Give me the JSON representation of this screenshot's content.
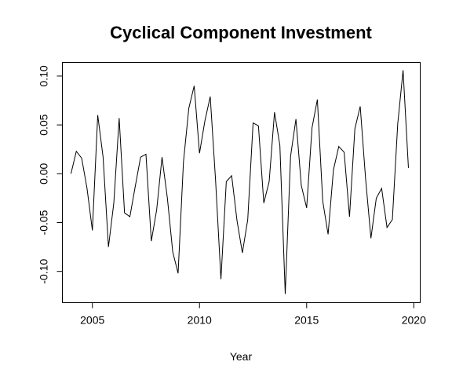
{
  "chart_data": {
    "type": "line",
    "title": "Cyclical Component Investment",
    "xlabel": "Year",
    "ylabel": "",
    "xlim": [
      2003.6,
      2020.3
    ],
    "ylim": [
      -0.132,
      0.114
    ],
    "x_ticks": [
      2005,
      2010,
      2015,
      2020
    ],
    "x_tick_labels": [
      "2005",
      "2010",
      "2015",
      "2020"
    ],
    "y_ticks": [
      -0.1,
      -0.05,
      0.0,
      0.05,
      0.1
    ],
    "y_tick_labels": [
      "-0.10",
      "-0.05",
      "0.00",
      "0.05",
      "0.10"
    ],
    "grid": false,
    "series": [
      {
        "color": "#000000",
        "x": [
          2004.0,
          2004.25,
          2004.5,
          2004.75,
          2005.0,
          2005.25,
          2005.5,
          2005.75,
          2006.0,
          2006.25,
          2006.5,
          2006.75,
          2007.0,
          2007.25,
          2007.5,
          2007.75,
          2008.0,
          2008.25,
          2008.5,
          2008.75,
          2009.0,
          2009.25,
          2009.5,
          2009.75,
          2010.0,
          2010.25,
          2010.5,
          2010.75,
          2011.0,
          2011.25,
          2011.5,
          2011.75,
          2012.0,
          2012.25,
          2012.5,
          2012.75,
          2013.0,
          2013.25,
          2013.5,
          2013.75,
          2014.0,
          2014.25,
          2014.5,
          2014.75,
          2015.0,
          2015.25,
          2015.5,
          2015.75,
          2016.0,
          2016.25,
          2016.5,
          2016.75,
          2017.0,
          2017.25,
          2017.5,
          2017.75,
          2018.0,
          2018.25,
          2018.5,
          2018.75,
          2019.0,
          2019.25,
          2019.5,
          2019.75
        ],
        "values": [
          0.0,
          0.023,
          0.016,
          -0.015,
          -0.058,
          0.06,
          0.017,
          -0.075,
          -0.03,
          0.057,
          -0.04,
          -0.044,
          -0.013,
          0.017,
          0.02,
          -0.069,
          -0.037,
          0.017,
          -0.025,
          -0.08,
          -0.102,
          0.012,
          0.067,
          0.09,
          0.021,
          0.054,
          0.079,
          -0.007,
          -0.108,
          -0.008,
          -0.002,
          -0.048,
          -0.081,
          -0.047,
          0.052,
          0.049,
          -0.03,
          -0.008,
          0.063,
          0.029,
          -0.123,
          0.018,
          0.056,
          -0.012,
          -0.035,
          0.047,
          0.076,
          -0.028,
          -0.062,
          0.004,
          0.028,
          0.022,
          -0.044,
          0.046,
          0.069,
          -0.005,
          -0.066,
          -0.025,
          -0.015,
          -0.055,
          -0.047,
          0.051,
          0.106,
          0.006
        ]
      }
    ]
  }
}
